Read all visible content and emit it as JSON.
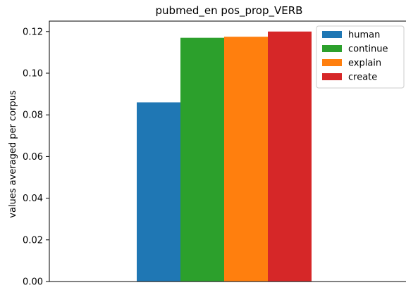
{
  "chart_data": {
    "type": "bar",
    "title": "pubmed_en pos_prop_VERB",
    "xlabel": "",
    "ylabel": "values averaged per corpus",
    "ylim": [
      0,
      0.125
    ],
    "yticks": [
      "0.00",
      "0.02",
      "0.04",
      "0.06",
      "0.08",
      "0.10",
      "0.12"
    ],
    "ytick_values": [
      0,
      0.02,
      0.04,
      0.06,
      0.08,
      0.1,
      0.12
    ],
    "grid": false,
    "legend_position": "top-right",
    "series": [
      {
        "name": "human",
        "value": 0.086,
        "color": "#1f77b4"
      },
      {
        "name": "continue",
        "value": 0.117,
        "color": "#2ca02c"
      },
      {
        "name": "explain",
        "value": 0.1175,
        "color": "#ff7f0e"
      },
      {
        "name": "create",
        "value": 0.12,
        "color": "#d62728"
      }
    ]
  }
}
